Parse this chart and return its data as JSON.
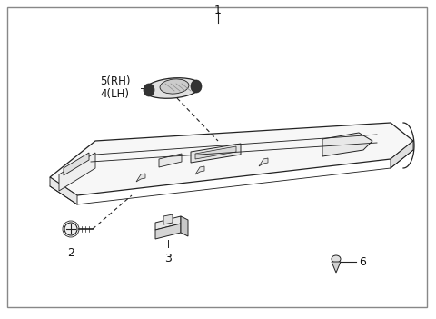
{
  "bg_color": "#ffffff",
  "border_color": "#888888",
  "line_color": "#222222",
  "label_color": "#111111",
  "figsize": [
    4.8,
    3.51
  ],
  "dpi": 100
}
